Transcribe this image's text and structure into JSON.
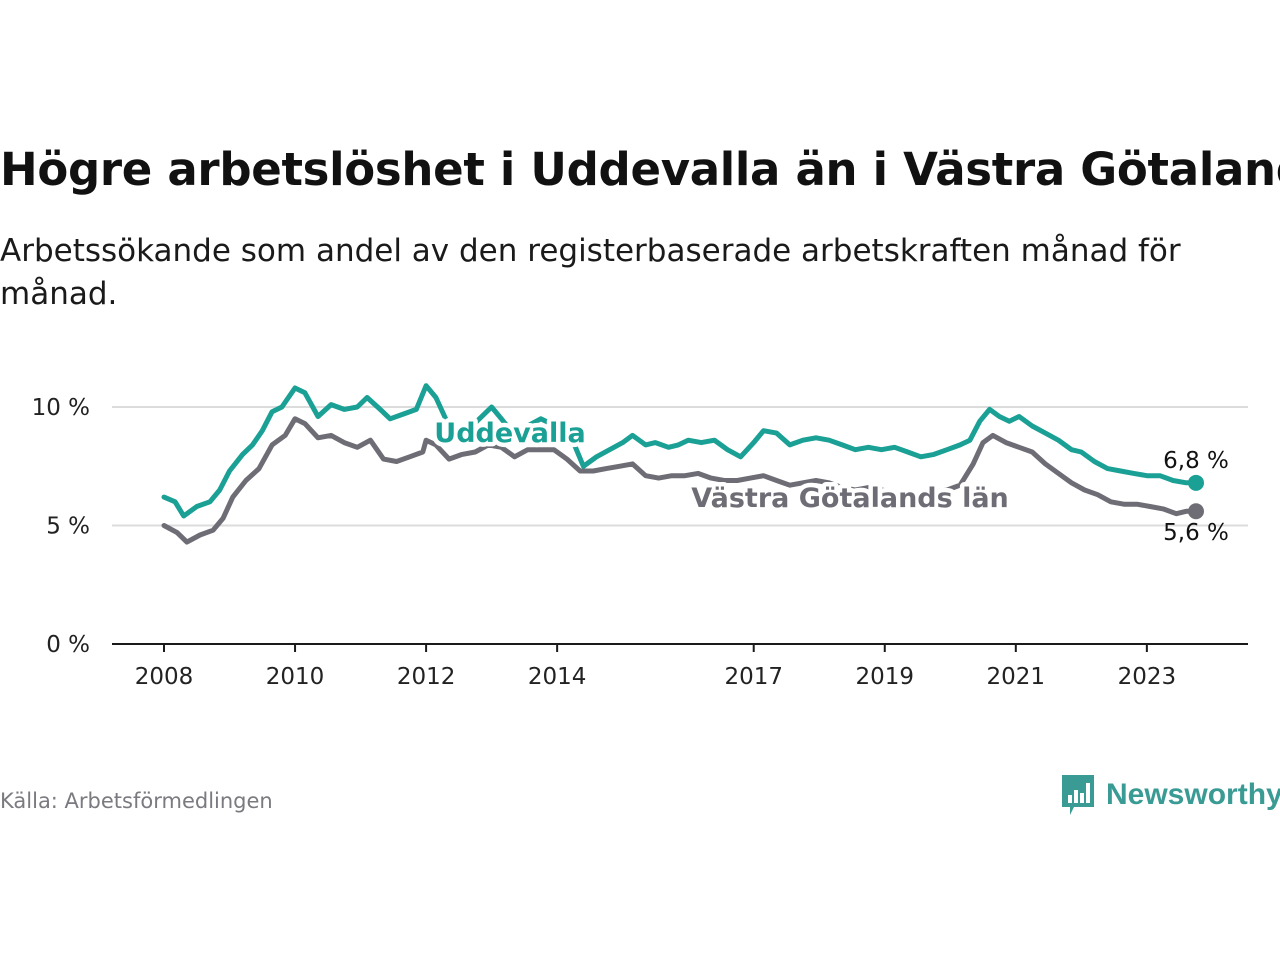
{
  "title": "Högre arbetslöshet i Uddevalla än i Västra Götaland",
  "subtitle": "Arbetssökande som andel av den registerbaserade arbetskraften månad för månad.",
  "source": "Källa: Arbetsförmedlingen",
  "brand": {
    "name": "Newsworthy",
    "icon": "newsworthy-logo-icon",
    "color": "#3a9b95"
  },
  "chart_data": {
    "type": "line",
    "title": "Högre arbetslöshet i Uddevalla än i Västra Götaland",
    "xlabel": "",
    "ylabel": "",
    "x_ticks": [
      "2008",
      "2010",
      "2012",
      "2014",
      "2017",
      "2019",
      "2021",
      "2023"
    ],
    "y_ticks": [
      "0 %",
      "5 %",
      "10 %"
    ],
    "ylim": [
      0,
      10
    ],
    "grid": true,
    "series": [
      {
        "name": "Uddevalla",
        "color": "#1aa095",
        "end_label": "6,8 %",
        "points": [
          [
            2008.0,
            6.2
          ],
          [
            2008.17,
            6.0
          ],
          [
            2008.3,
            5.4
          ],
          [
            2008.5,
            5.8
          ],
          [
            2008.7,
            6.0
          ],
          [
            2008.85,
            6.5
          ],
          [
            2009.0,
            7.3
          ],
          [
            2009.2,
            8.0
          ],
          [
            2009.35,
            8.4
          ],
          [
            2009.5,
            9.0
          ],
          [
            2009.65,
            9.8
          ],
          [
            2009.8,
            10.0
          ],
          [
            2010.0,
            10.8
          ],
          [
            2010.15,
            10.6
          ],
          [
            2010.35,
            9.6
          ],
          [
            2010.55,
            10.1
          ],
          [
            2010.75,
            9.9
          ],
          [
            2010.95,
            10.0
          ],
          [
            2011.1,
            10.4
          ],
          [
            2011.3,
            9.9
          ],
          [
            2011.45,
            9.5
          ],
          [
            2011.65,
            9.7
          ],
          [
            2011.85,
            9.9
          ],
          [
            2012.0,
            10.9
          ],
          [
            2012.15,
            10.4
          ],
          [
            2012.35,
            9.2
          ],
          [
            2012.5,
            8.8
          ],
          [
            2012.7,
            9.2
          ],
          [
            2012.85,
            9.6
          ],
          [
            2013.0,
            10.0
          ],
          [
            2013.15,
            9.5
          ],
          [
            2013.35,
            8.8
          ],
          [
            2013.55,
            9.2
          ],
          [
            2013.75,
            9.5
          ],
          [
            2013.9,
            9.3
          ],
          [
            2014.05,
            9.0
          ],
          [
            2014.25,
            8.5
          ],
          [
            2014.4,
            7.5
          ],
          [
            2014.6,
            7.9
          ],
          [
            2014.8,
            8.2
          ],
          [
            2015.0,
            8.5
          ],
          [
            2015.15,
            8.8
          ],
          [
            2015.35,
            8.4
          ],
          [
            2015.5,
            8.5
          ],
          [
            2015.7,
            8.3
          ],
          [
            2015.85,
            8.4
          ],
          [
            2016.0,
            8.6
          ],
          [
            2016.2,
            8.5
          ],
          [
            2016.4,
            8.6
          ],
          [
            2016.6,
            8.2
          ],
          [
            2016.8,
            7.9
          ],
          [
            2017.0,
            8.5
          ],
          [
            2017.15,
            9.0
          ],
          [
            2017.35,
            8.9
          ],
          [
            2017.55,
            8.4
          ],
          [
            2017.75,
            8.6
          ],
          [
            2017.95,
            8.7
          ],
          [
            2018.15,
            8.6
          ],
          [
            2018.35,
            8.4
          ],
          [
            2018.55,
            8.2
          ],
          [
            2018.75,
            8.3
          ],
          [
            2018.95,
            8.2
          ],
          [
            2019.15,
            8.3
          ],
          [
            2019.35,
            8.1
          ],
          [
            2019.55,
            7.9
          ],
          [
            2019.75,
            8.0
          ],
          [
            2019.95,
            8.2
          ],
          [
            2020.15,
            8.4
          ],
          [
            2020.3,
            8.6
          ],
          [
            2020.45,
            9.4
          ],
          [
            2020.6,
            9.9
          ],
          [
            2020.75,
            9.6
          ],
          [
            2020.9,
            9.4
          ],
          [
            2021.05,
            9.6
          ],
          [
            2021.25,
            9.2
          ],
          [
            2021.45,
            8.9
          ],
          [
            2021.65,
            8.6
          ],
          [
            2021.85,
            8.2
          ],
          [
            2022.0,
            8.1
          ],
          [
            2022.2,
            7.7
          ],
          [
            2022.4,
            7.4
          ],
          [
            2022.6,
            7.3
          ],
          [
            2022.8,
            7.2
          ],
          [
            2023.0,
            7.1
          ],
          [
            2023.2,
            7.1
          ],
          [
            2023.4,
            6.9
          ],
          [
            2023.6,
            6.8
          ],
          [
            2023.75,
            6.8
          ]
        ]
      },
      {
        "name": "Västra Götalands län",
        "color": "#6e6d75",
        "end_label": "5,6 %",
        "points": [
          [
            2008.0,
            5.0
          ],
          [
            2008.2,
            4.7
          ],
          [
            2008.35,
            4.3
          ],
          [
            2008.55,
            4.6
          ],
          [
            2008.75,
            4.8
          ],
          [
            2008.9,
            5.3
          ],
          [
            2009.05,
            6.2
          ],
          [
            2009.25,
            6.9
          ],
          [
            2009.45,
            7.4
          ],
          [
            2009.65,
            8.4
          ],
          [
            2009.85,
            8.8
          ],
          [
            2010.0,
            9.5
          ],
          [
            2010.15,
            9.3
          ],
          [
            2010.35,
            8.7
          ],
          [
            2010.55,
            8.8
          ],
          [
            2010.75,
            8.5
          ],
          [
            2010.95,
            8.3
          ],
          [
            2011.15,
            8.6
          ],
          [
            2011.35,
            7.8
          ],
          [
            2011.55,
            7.7
          ],
          [
            2011.75,
            7.9
          ],
          [
            2011.95,
            8.1
          ],
          [
            2012.0,
            8.6
          ],
          [
            2012.15,
            8.4
          ],
          [
            2012.35,
            7.8
          ],
          [
            2012.55,
            8.0
          ],
          [
            2012.75,
            8.1
          ],
          [
            2012.95,
            8.4
          ],
          [
            2013.15,
            8.3
          ],
          [
            2013.35,
            7.9
          ],
          [
            2013.55,
            8.2
          ],
          [
            2013.75,
            8.2
          ],
          [
            2013.95,
            8.2
          ],
          [
            2014.15,
            7.8
          ],
          [
            2014.35,
            7.3
          ],
          [
            2014.55,
            7.3
          ],
          [
            2014.75,
            7.4
          ],
          [
            2014.95,
            7.5
          ],
          [
            2015.15,
            7.6
          ],
          [
            2015.35,
            7.1
          ],
          [
            2015.55,
            7.0
          ],
          [
            2015.75,
            7.1
          ],
          [
            2015.95,
            7.1
          ],
          [
            2016.15,
            7.2
          ],
          [
            2016.35,
            7.0
          ],
          [
            2016.55,
            6.9
          ],
          [
            2016.75,
            6.9
          ],
          [
            2016.95,
            7.0
          ],
          [
            2017.15,
            7.1
          ],
          [
            2017.35,
            6.9
          ],
          [
            2017.55,
            6.7
          ],
          [
            2017.75,
            6.8
          ],
          [
            2017.95,
            6.9
          ],
          [
            2018.15,
            6.8
          ],
          [
            2018.35,
            6.6
          ],
          [
            2018.55,
            6.5
          ],
          [
            2018.75,
            6.6
          ],
          [
            2018.95,
            6.5
          ],
          [
            2019.15,
            6.4
          ],
          [
            2019.35,
            6.3
          ],
          [
            2019.55,
            6.3
          ],
          [
            2019.75,
            6.4
          ],
          [
            2019.95,
            6.5
          ],
          [
            2020.15,
            6.7
          ],
          [
            2020.35,
            7.6
          ],
          [
            2020.5,
            8.5
          ],
          [
            2020.65,
            8.8
          ],
          [
            2020.85,
            8.5
          ],
          [
            2021.05,
            8.3
          ],
          [
            2021.25,
            8.1
          ],
          [
            2021.45,
            7.6
          ],
          [
            2021.65,
            7.2
          ],
          [
            2021.85,
            6.8
          ],
          [
            2022.05,
            6.5
          ],
          [
            2022.25,
            6.3
          ],
          [
            2022.45,
            6.0
          ],
          [
            2022.65,
            5.9
          ],
          [
            2022.85,
            5.9
          ],
          [
            2023.05,
            5.8
          ],
          [
            2023.25,
            5.7
          ],
          [
            2023.45,
            5.5
          ],
          [
            2023.6,
            5.6
          ],
          [
            2023.75,
            5.6
          ]
        ]
      }
    ]
  }
}
